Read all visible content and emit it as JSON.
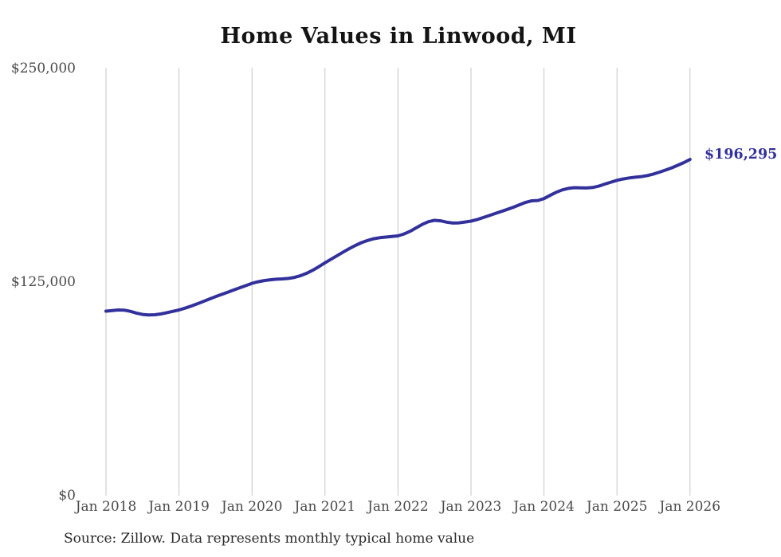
{
  "chart": {
    "title": "Home Values in Linwood, MI",
    "source": "Source: Zillow. Data represents monthly typical home value"
  },
  "chart_data": {
    "type": "line",
    "title": "Home Values in Linwood, MI",
    "series_name": "Monthly typical home value",
    "frequency": "monthly",
    "x_start": "2018-01",
    "x_end": "2026-01",
    "x": [
      "2018-01",
      "2018-02",
      "2018-03",
      "2018-04",
      "2018-05",
      "2018-06",
      "2018-07",
      "2018-08",
      "2018-09",
      "2018-10",
      "2018-11",
      "2018-12",
      "2019-01",
      "2019-02",
      "2019-03",
      "2019-04",
      "2019-05",
      "2019-06",
      "2019-07",
      "2019-08",
      "2019-09",
      "2019-10",
      "2019-11",
      "2019-12",
      "2020-01",
      "2020-02",
      "2020-03",
      "2020-04",
      "2020-05",
      "2020-06",
      "2020-07",
      "2020-08",
      "2020-09",
      "2020-10",
      "2020-11",
      "2020-12",
      "2021-01",
      "2021-02",
      "2021-03",
      "2021-04",
      "2021-05",
      "2021-06",
      "2021-07",
      "2021-08",
      "2021-09",
      "2021-10",
      "2021-11",
      "2021-12",
      "2022-01",
      "2022-02",
      "2022-03",
      "2022-04",
      "2022-05",
      "2022-06",
      "2022-07",
      "2022-08",
      "2022-09",
      "2022-10",
      "2022-11",
      "2022-12",
      "2023-01",
      "2023-02",
      "2023-03",
      "2023-04",
      "2023-05",
      "2023-06",
      "2023-07",
      "2023-08",
      "2023-09",
      "2023-10",
      "2023-11",
      "2023-12",
      "2024-01",
      "2024-02",
      "2024-03",
      "2024-04",
      "2024-05",
      "2024-06",
      "2024-07",
      "2024-08",
      "2024-09",
      "2024-10",
      "2024-11",
      "2024-12",
      "2025-01",
      "2025-02",
      "2025-03",
      "2025-04",
      "2025-05",
      "2025-06",
      "2025-07",
      "2025-08",
      "2025-09",
      "2025-10",
      "2025-11",
      "2025-12",
      "2026-01"
    ],
    "series": [
      {
        "name": "Typical home value",
        "values": [
          107500,
          107900,
          108200,
          108100,
          107400,
          106400,
          105600,
          105300,
          105400,
          105900,
          106600,
          107400,
          108200,
          109300,
          110500,
          111800,
          113200,
          114600,
          116000,
          117300,
          118600,
          119900,
          121200,
          122500,
          123800,
          124700,
          125400,
          125900,
          126200,
          126400,
          126700,
          127300,
          128300,
          129700,
          131500,
          133600,
          135800,
          137900,
          140000,
          142100,
          144100,
          146000,
          147600,
          148900,
          149900,
          150500,
          150900,
          151200,
          151600,
          152700,
          154300,
          156300,
          158300,
          159900,
          160700,
          160400,
          159600,
          159100,
          159200,
          159700,
          160200,
          161100,
          162300,
          163500,
          164700,
          165900,
          167100,
          168400,
          169800,
          171200,
          172100,
          172300,
          173400,
          175300,
          177100,
          178500,
          179400,
          179800,
          179700,
          179600,
          179900,
          180700,
          181900,
          183000,
          184100,
          184900,
          185500,
          185900,
          186300,
          186900,
          187800,
          188900,
          190100,
          191400,
          192900,
          194500,
          196295
        ]
      }
    ],
    "x_tick_labels": [
      "Jan 2018",
      "Jan 2019",
      "Jan 2020",
      "Jan 2021",
      "Jan 2022",
      "Jan 2023",
      "Jan 2024",
      "Jan 2025",
      "Jan 2026"
    ],
    "y_ticks": [
      0,
      125000,
      250000
    ],
    "y_tick_labels": [
      "$0",
      "$125,000",
      "$250,000"
    ],
    "ylim": [
      0,
      250000
    ],
    "end_label": "$196,295",
    "line_color": "#32319c",
    "grid_color": "#c6c6c6",
    "tick_label_color": "#4a4a4a",
    "grid": "vertical-only",
    "legend_position": "none"
  }
}
